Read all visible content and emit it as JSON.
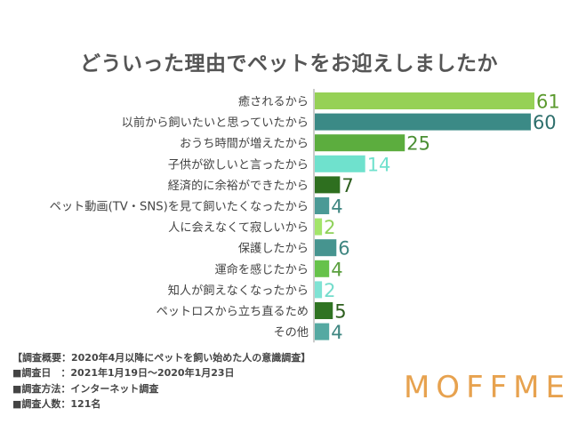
{
  "chart_data": {
    "type": "bar",
    "orientation": "horizontal",
    "title": "どういった理由でペットをお迎えしましたか",
    "categories": [
      "癒されるから",
      "以前から飼いたいと思っていたから",
      "おうち時間が増えたから",
      "子供が欲しいと言ったから",
      "経済的に余裕ができたから",
      "ペット動画(TV・SNS)を見て飼いたくなったから",
      "人に会えなくて寂しいから",
      "保護したから",
      "運命を感じたから",
      "知人が飼えなくなったから",
      "ペットロスから立ち直るため",
      "その他"
    ],
    "values": [
      61,
      60,
      25,
      14,
      7,
      4,
      2,
      6,
      4,
      2,
      5,
      4
    ],
    "xlim": [
      0,
      61
    ],
    "colors": [
      "#96d156",
      "#3b8a86",
      "#5cad3e",
      "#6fe1cd",
      "#2e6f1f",
      "#4b9a96",
      "#a3e56a",
      "#46948f",
      "#66c24a",
      "#7fe3d4",
      "#2f7322",
      "#55a9a2"
    ],
    "label_colors": [
      "#5b9a2e",
      "#2e6f6c",
      "#4b8f34",
      "#6fe1cd",
      "#2e5f1f",
      "#3f8681",
      "#8fd15a",
      "#3f8681",
      "#5a9f3e",
      "#73dccb",
      "#2e5f1f",
      "#3f8681"
    ]
  },
  "survey": {
    "lines": [
      "【調査概要：2020年4月以降にペットを飼い始めた人の意識調査】",
      "■調査日　：2021年1月19日〜2020年1月23日",
      "■調査方法：インターネット調査",
      "■調査人数：121名"
    ]
  },
  "brand": "MOFFME"
}
